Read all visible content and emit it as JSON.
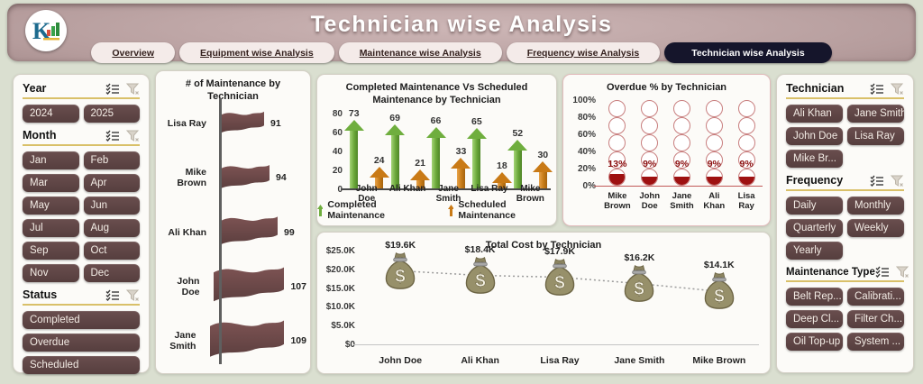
{
  "app": {
    "title": "Technician  wise Analysis"
  },
  "logo": {
    "letter": "K"
  },
  "tabs": [
    {
      "label": "Overview",
      "active": false
    },
    {
      "label": "Equipment wise Analysis",
      "active": false
    },
    {
      "label": "Maintenance wise Analysis",
      "active": false
    },
    {
      "label": "Frequency  wise Analysis",
      "active": false
    },
    {
      "label": "Technician  wise Analysis",
      "active": true
    }
  ],
  "left_filters": {
    "year": {
      "label": "Year",
      "options": [
        "2024",
        "2025"
      ]
    },
    "month": {
      "label": "Month",
      "options": [
        "Jan",
        "Feb",
        "Mar",
        "Apr",
        "May",
        "Jun",
        "Jul",
        "Aug",
        "Sep",
        "Oct",
        "Nov",
        "Dec"
      ]
    },
    "status": {
      "label": "Status",
      "options": [
        "Completed",
        "Overdue",
        "Scheduled"
      ]
    }
  },
  "right_filters": {
    "technician": {
      "label": "Technician",
      "options": [
        "Ali Khan",
        "Jane Smith",
        "John Doe",
        "Lisa Ray",
        "Mike Br..."
      ]
    },
    "frequency": {
      "label": "Frequency",
      "options": [
        "Daily",
        "Monthly",
        "Quarterly",
        "Weekly",
        "Yearly"
      ]
    },
    "maintenance_type": {
      "label": "Maintenance Type",
      "options": [
        "Belt Rep...",
        "Calibrati...",
        "Deep Cl...",
        "Filter Ch...",
        "Oil Top-up",
        "System ..."
      ]
    }
  },
  "chart_data": [
    {
      "type": "bar",
      "title": "# of Maintenance by Technician",
      "orientation": "horizontal",
      "marker": "flag",
      "categories": [
        "Lisa Ray",
        "Mike Brown",
        "Ali Khan",
        "John Doe",
        "Jane Smith"
      ],
      "values": [
        91,
        94,
        99,
        107,
        109
      ]
    },
    {
      "type": "bar",
      "title": "Completed Maintenance Vs Scheduled Maintenance by Technician",
      "marker": "arrow",
      "categories": [
        "John Doe",
        "Ali Khan",
        "Jane Smith",
        "Lisa Ray",
        "Mike Brown"
      ],
      "series": [
        {
          "name": "Completed Maintenance",
          "color": "#6fae3e",
          "values": [
            73,
            69,
            66,
            65,
            52
          ]
        },
        {
          "name": "Scheduled Maintenance",
          "color": "#c97a16",
          "values": [
            24,
            21,
            33,
            18,
            30
          ]
        }
      ],
      "ylim": [
        0,
        80
      ],
      "yticks": [
        "0",
        "20",
        "40",
        "60",
        "80"
      ],
      "legend_position": "bottom"
    },
    {
      "type": "bar",
      "title": "Overdue % by Technician",
      "marker": "filled-circles",
      "categories": [
        "Mike Brown",
        "John Doe",
        "Jane Smith",
        "Ali Khan",
        "Lisa Ray"
      ],
      "values": [
        13,
        9,
        9,
        9,
        9
      ],
      "labels": [
        "13%",
        "9%",
        "9%",
        "9%",
        "9%"
      ],
      "ylim": [
        0,
        100
      ],
      "yticks": [
        "0%",
        "20%",
        "40%",
        "60%",
        "80%",
        "100%"
      ],
      "fill_color": "#9e1111"
    },
    {
      "type": "line",
      "title": "Total Cost by Technician",
      "marker": "money-bag",
      "categories": [
        "John Doe",
        "Ali Khan",
        "Lisa Ray",
        "Jane Smith",
        "Mike Brown"
      ],
      "values": [
        19.6,
        18.4,
        17.9,
        16.2,
        14.1
      ],
      "labels": [
        "$19.6K",
        "$18.4K",
        "$17.9K",
        "$16.2K",
        "$14.1K"
      ],
      "ylim": [
        0,
        25
      ],
      "yticks": [
        "$0",
        "$5.0K",
        "$10.0K",
        "$15.0K",
        "$20.0K",
        "$25.0K"
      ]
    }
  ]
}
